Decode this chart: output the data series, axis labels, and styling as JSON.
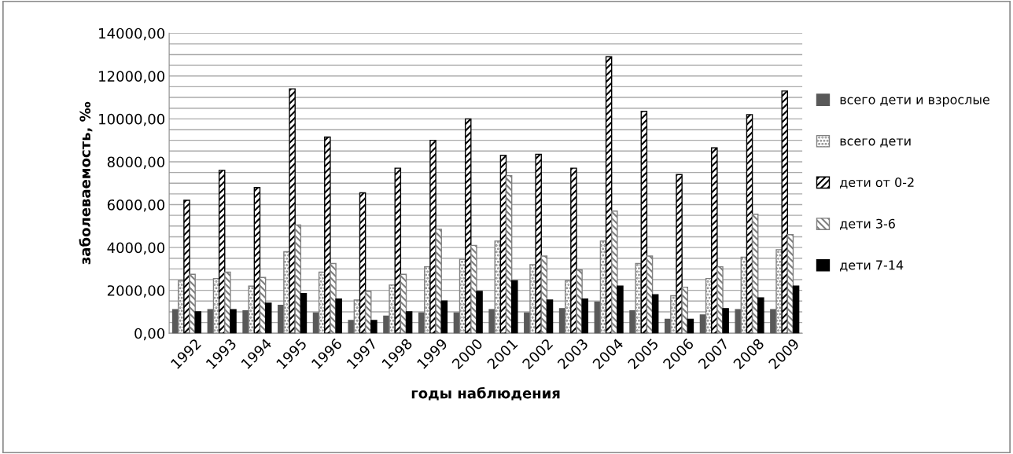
{
  "chart_data": {
    "type": "bar",
    "xlabel": "годы наблюдения",
    "ylabel": "заболеваемость, ‰",
    "categories": [
      "1992",
      "1993",
      "1994",
      "1995",
      "1996",
      "1997",
      "1998",
      "1999",
      "2000",
      "2001",
      "2002",
      "2003",
      "2004",
      "2005",
      "2006",
      "2007",
      "2008",
      "2009"
    ],
    "series": [
      {
        "name": "всего дети и взрослые",
        "color": "#595959",
        "values": [
          1100,
          1100,
          1050,
          1300,
          950,
          600,
          800,
          950,
          950,
          1100,
          950,
          1150,
          1450,
          1050,
          650,
          850,
          1100,
          1100
        ]
      },
      {
        "name": "всего дети",
        "color": "#808080",
        "values": [
          2450,
          2550,
          2200,
          3800,
          2850,
          1550,
          2250,
          3100,
          3450,
          4300,
          3200,
          2450,
          4300,
          3250,
          1750,
          2550,
          3550,
          3900
        ]
      },
      {
        "name": "дети от 0-2",
        "color": "#000000",
        "values": [
          6200,
          7600,
          6800,
          11400,
          9150,
          6550,
          7700,
          9000,
          10000,
          8300,
          8350,
          7700,
          12900,
          10350,
          7400,
          8650,
          10200,
          11300
        ]
      },
      {
        "name": "дети 3-6",
        "color": "#7f7f7f",
        "values": [
          2750,
          2850,
          2600,
          5050,
          3250,
          1950,
          2750,
          4850,
          4100,
          7350,
          3600,
          2950,
          5700,
          3600,
          2150,
          3100,
          5550,
          4600
        ]
      },
      {
        "name": "дети 7-14",
        "color": "#000000",
        "values": [
          1000,
          1100,
          1400,
          1850,
          1600,
          600,
          1000,
          1500,
          1950,
          2450,
          1550,
          1600,
          2200,
          1800,
          650,
          1150,
          1650,
          2200
        ]
      }
    ],
    "ylim": [
      0,
      14000
    ],
    "yticks": [
      {
        "value": 0,
        "label": "0,00"
      },
      {
        "value": 500,
        "label": null
      },
      {
        "value": 1000,
        "label": null
      },
      {
        "value": 1500,
        "label": null
      },
      {
        "value": 2000,
        "label": "2000,00"
      },
      {
        "value": 2500,
        "label": null
      },
      {
        "value": 3000,
        "label": null
      },
      {
        "value": 3500,
        "label": null
      },
      {
        "value": 4000,
        "label": "4000,00"
      },
      {
        "value": 4500,
        "label": null
      },
      {
        "value": 5000,
        "label": null
      },
      {
        "value": 5500,
        "label": null
      },
      {
        "value": 6000,
        "label": "6000,00"
      },
      {
        "value": 6500,
        "label": null
      },
      {
        "value": 7000,
        "label": null
      },
      {
        "value": 7500,
        "label": null
      },
      {
        "value": 8000,
        "label": "8000,00"
      },
      {
        "value": 8500,
        "label": null
      },
      {
        "value": 9000,
        "label": null
      },
      {
        "value": 9500,
        "label": null
      },
      {
        "value": 10000,
        "label": "10000,00"
      },
      {
        "value": 10500,
        "label": null
      },
      {
        "value": 11000,
        "label": null
      },
      {
        "value": 11500,
        "label": null
      },
      {
        "value": 12000,
        "label": "12000,00"
      },
      {
        "value": 12500,
        "label": null
      },
      {
        "value": 13000,
        "label": null
      },
      {
        "value": 13500,
        "label": null
      },
      {
        "value": 14000,
        "label": "14000,00"
      }
    ],
    "grid": "y",
    "legend": "right"
  }
}
